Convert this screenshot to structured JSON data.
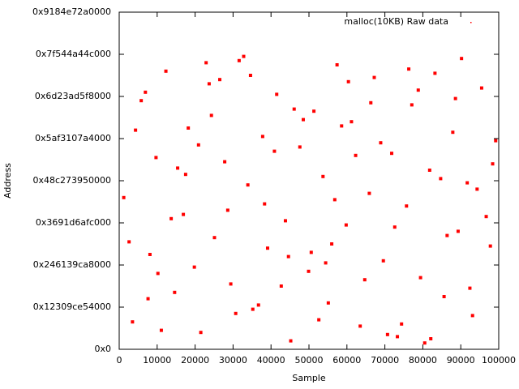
{
  "chart_data": {
    "type": "scatter",
    "x_label": "Sample",
    "y_label": "Address",
    "xlim": [
      0,
      100000
    ],
    "ylim": [
      0,
      160000000000000.0
    ],
    "xticks": [
      0,
      10000,
      20000,
      30000,
      40000,
      50000,
      60000,
      70000,
      80000,
      90000,
      100000
    ],
    "yticks": [
      {
        "value": 0,
        "label": "0x0"
      },
      {
        "value": 20000000000000.0,
        "label": "0x12309ce54000"
      },
      {
        "value": 40000000000000.0,
        "label": "0x246139ca8000"
      },
      {
        "value": 60000000000000.0,
        "label": "0x3691d6afc000"
      },
      {
        "value": 80000000000000.0,
        "label": "0x48c273950000"
      },
      {
        "value": 100000000000000.0,
        "label": "0x5af3107a4000"
      },
      {
        "value": 120000000000000.0,
        "label": "0x6d23ad5f8000"
      },
      {
        "value": 140000000000000.0,
        "label": "0x7f544a44c000"
      },
      {
        "value": 160000000000000.0,
        "label": "0x9184e72a0000"
      }
    ],
    "legend": "top-right",
    "series": [
      {
        "name": "malloc(10KB) Raw data",
        "color": "#ff0000",
        "x": [
          1200,
          3500,
          5800,
          8100,
          9700,
          12300,
          14600,
          16900,
          18200,
          21500,
          23700,
          25100,
          27800,
          29400,
          31600,
          33900,
          35200,
          37800,
          39100,
          41500,
          43800,
          45200,
          47600,
          49900,
          51300,
          53700,
          55100,
          57400,
          59800,
          61200,
          63500,
          65900,
          67200,
          69600,
          71800,
          73300,
          75700,
          77100,
          79400,
          81800,
          83200,
          85600,
          87900,
          89300,
          91700,
          93100,
          95500,
          97800,
          99200,
          2600,
          6900,
          11100,
          15400,
          19800,
          24300,
          28600,
          32800,
          36700,
          40900,
          44600,
          48500,
          52600,
          56800,
          60400,
          64700,
          68900,
          72600,
          76300,
          80500,
          84700,
          88600,
          92400,
          96700,
          4300,
          10200,
          17500,
          22900,
          30700,
          38300,
          46100,
          54400,
          62300,
          70700,
          78800,
          86400,
          94300,
          7600,
          20900,
          34600,
          50600,
          66300,
          82100,
          98400,
          13700,
          26500,
          42700,
          58600,
          74400,
          90200,
          56000
        ],
        "values": [
          72000000000000.0,
          13000000000000.0,
          118000000000000.0,
          45000000000000.0,
          91000000000000.0,
          132000000000000.0,
          27000000000000.0,
          64000000000000.0,
          105000000000000.0,
          8000000000000.0,
          126000000000000.0,
          53000000000000.0,
          89000000000000.0,
          31000000000000.0,
          137000000000000.0,
          78000000000000.0,
          19000000000000.0,
          101000000000000.0,
          48000000000000.0,
          121000000000000.0,
          61000000000000.0,
          4000000000000.0,
          96000000000000.0,
          37000000000000.0,
          113000000000000.0,
          82000000000000.0,
          22000000000000.0,
          135000000000000.0,
          59000000000000.0,
          108000000000000.0,
          11000000000000.0,
          74000000000000.0,
          129000000000000.0,
          42000000000000.0,
          93000000000000.0,
          6000000000000.0,
          68000000000000.0,
          116000000000000.0,
          34000000000000.0,
          85000000000000.0,
          131000000000000.0,
          25000000000000.0,
          103000000000000.0,
          56000000000000.0,
          79000000000000.0,
          16000000000000.0,
          124000000000000.0,
          49000000000000.0,
          99000000000000.0,
          51000000000000.0,
          122000000000000.0,
          9000000000000.0,
          86000000000000.0,
          39000000000000.0,
          111000000000000.0,
          66000000000000.0,
          139000000000000.0,
          21000000000000.0,
          94000000000000.0,
          44000000000000.0,
          109000000000000.0,
          14000000000000.0,
          71000000000000.0,
          127000000000000.0,
          33000000000000.0,
          98000000000000.0,
          58000000000000.0,
          133000000000000.0,
          3000000000000.0,
          81000000000000.0,
          119000000000000.0,
          29000000000000.0,
          63000000000000.0,
          104000000000000.0,
          36000000000000.0,
          83000000000000.0,
          136000000000000.0,
          17000000000000.0,
          69000000000000.0,
          114000000000000.0,
          41000000000000.0,
          92000000000000.0,
          7000000000000.0,
          123000000000000.0,
          54000000000000.0,
          76000000000000.0,
          24000000000000.0,
          97000000000000.0,
          130000000000000.0,
          46000000000000.0,
          117000000000000.0,
          5000000000000.0,
          88000000000000.0,
          62000000000000.0,
          128000000000000.0,
          30000000000000.0,
          106000000000000.0,
          12000000000000.0,
          138000000000000.0,
          50000000000000.0
        ]
      }
    ]
  }
}
